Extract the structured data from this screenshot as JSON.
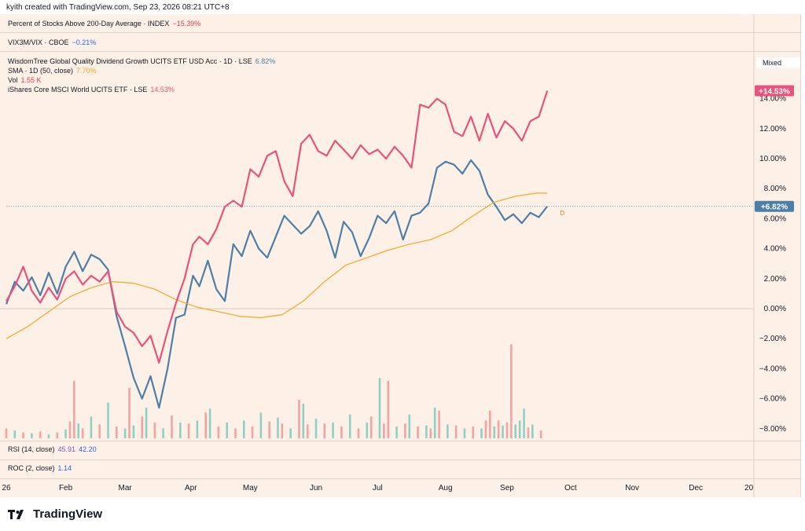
{
  "header": {
    "text": "kyith created with TradingView.com, Sep 23, 2026 08:21 UTC+8"
  },
  "panes": {
    "breadth": {
      "name": "Percent of Stocks Above 200-Day Average · INDEX",
      "value": "−15.39%",
      "color": "#f23645"
    },
    "vix": {
      "name": "VIX3M/VIX · CBOE",
      "value": "−0.21%",
      "color": "#2962ff"
    },
    "rsi": {
      "name": "RSI (14, close)",
      "value1": "45.91",
      "value2": "42.20",
      "color1": "#7e57c2",
      "color2": "#2962ff"
    },
    "roc": {
      "name": "ROC (2, close)",
      "value": "1.14",
      "color": "#2962ff"
    }
  },
  "main_legend": [
    {
      "name": "WisdomTree Global Quality Dividend Growth UCITS ETF USD Acc · 1D · LSE",
      "value": "6.82%",
      "color": "#4d7ea8"
    },
    {
      "name": "SMA · 1D (50, close)",
      "value": "7.70%",
      "color": "#f5a623"
    },
    {
      "name": "Vol",
      "value": "1.55 K",
      "color": "#f23645"
    },
    {
      "name": "iShares Core MSCI World UCITS ETF · LSE",
      "value": "14.53%",
      "color": "#e8527d"
    }
  ],
  "scale_mode": "Mixed",
  "footer": {
    "brand": "TradingView"
  },
  "chart_data": {
    "type": "line",
    "y_unit": "%",
    "ylim": [
      -9,
      15.5
    ],
    "y_ticks": [
      "14.00%",
      "12.00%",
      "10.00%",
      "8.00%",
      "6.00%",
      "4.00%",
      "2.00%",
      "0.00%",
      "−2.00%",
      "−4.00%",
      "−6.00%",
      "−8.00%"
    ],
    "y_tick_values": [
      14,
      12,
      10,
      8,
      6,
      4,
      2,
      0,
      -2,
      -4,
      -6,
      -8
    ],
    "x_labels": [
      "26",
      "Feb",
      "Mar",
      "Apr",
      "May",
      "Jun",
      "Jul",
      "Aug",
      "Sep",
      "Oct",
      "Nov",
      "Dec",
      "20"
    ],
    "x_label_days": [
      0,
      28,
      56,
      87,
      115,
      146,
      175,
      207,
      236,
      266,
      295,
      325,
      350
    ],
    "x_range_days": [
      0,
      352
    ],
    "series": [
      {
        "name": "WisdomTree Global Quality Dividend Growth UCITS ETF USD Acc",
        "color": "#4d7ea8",
        "x": [
          0,
          4,
          8,
          12,
          16,
          20,
          24,
          28,
          32,
          36,
          40,
          44,
          48,
          52,
          56,
          60,
          64,
          68,
          72,
          76,
          80,
          84,
          88,
          91,
          95,
          99,
          103,
          107,
          111,
          115,
          119,
          123,
          127,
          131,
          135,
          139,
          143,
          147,
          151,
          155,
          159,
          163,
          167,
          171,
          175,
          179,
          183,
          187,
          191,
          195,
          199,
          203,
          207,
          211,
          215,
          219,
          223,
          227,
          231,
          235,
          239,
          243,
          247,
          251,
          255
        ],
        "values": [
          0.3,
          1.8,
          1.2,
          2.1,
          0.9,
          2.4,
          1.0,
          2.8,
          3.8,
          2.5,
          3.6,
          3.3,
          2.6,
          -0.5,
          -2.5,
          -4.6,
          -6.0,
          -4.5,
          -6.6,
          -4.0,
          -0.6,
          -0.4,
          2.2,
          1.5,
          3.2,
          1.3,
          0.5,
          4.3,
          3.5,
          5.2,
          4.0,
          3.4,
          4.8,
          6.2,
          5.6,
          5.0,
          5.5,
          6.5,
          5.2,
          3.4,
          5.8,
          5.1,
          3.5,
          4.7,
          6.2,
          5.7,
          6.5,
          4.6,
          6.2,
          6.4,
          7.0,
          9.4,
          9.8,
          9.6,
          9.0,
          9.9,
          9.2,
          7.6,
          6.8,
          5.9,
          6.3,
          5.7,
          6.4,
          6.1,
          6.82
        ]
      },
      {
        "name": "SMA · 1D (50, close)",
        "color": "#f5a623",
        "x": [
          0,
          10,
          20,
          30,
          40,
          50,
          60,
          70,
          80,
          90,
          100,
          110,
          120,
          130,
          140,
          150,
          160,
          170,
          180,
          190,
          200,
          210,
          220,
          230,
          240,
          250,
          255
        ],
        "values": [
          -2.0,
          -1.2,
          -0.2,
          0.8,
          1.4,
          1.8,
          1.7,
          1.3,
          0.6,
          0.1,
          -0.2,
          -0.5,
          -0.6,
          -0.4,
          0.5,
          1.8,
          2.9,
          3.4,
          3.9,
          4.3,
          4.6,
          5.2,
          6.2,
          7.1,
          7.5,
          7.7,
          7.7
        ]
      },
      {
        "name": "iShares Core MSCI World UCITS ETF",
        "color": "#e8527d",
        "x": [
          0,
          4,
          8,
          12,
          16,
          20,
          24,
          28,
          32,
          36,
          40,
          44,
          48,
          52,
          56,
          60,
          64,
          68,
          72,
          76,
          80,
          84,
          88,
          91,
          95,
          99,
          103,
          107,
          111,
          115,
          119,
          123,
          127,
          131,
          135,
          139,
          143,
          147,
          151,
          155,
          159,
          163,
          167,
          171,
          175,
          179,
          183,
          187,
          191,
          195,
          199,
          203,
          207,
          211,
          215,
          219,
          223,
          227,
          231,
          235,
          239,
          243,
          247,
          251,
          255
        ],
        "values": [
          0.5,
          1.5,
          2.8,
          1.2,
          0.4,
          1.4,
          0.6,
          2.0,
          2.5,
          1.6,
          2.2,
          1.8,
          2.5,
          -0.2,
          -1.2,
          -1.6,
          -2.5,
          -1.8,
          -3.6,
          -1.5,
          0.4,
          2.0,
          4.3,
          4.8,
          4.3,
          5.3,
          6.8,
          7.2,
          6.8,
          9.3,
          8.8,
          10.2,
          10.5,
          8.5,
          7.5,
          11.0,
          11.6,
          10.5,
          10.2,
          11.2,
          10.6,
          10.0,
          10.9,
          10.3,
          10.6,
          10.0,
          10.8,
          10.2,
          9.4,
          13.6,
          13.4,
          14.0,
          13.6,
          11.8,
          11.5,
          12.8,
          11.2,
          13.0,
          11.4,
          12.5,
          12.0,
          11.2,
          12.5,
          12.8,
          14.53
        ]
      }
    ],
    "volume": {
      "label": "Vol",
      "bars": [
        [
          0,
          1.0,
          "red"
        ],
        [
          4,
          0.8,
          "green"
        ],
        [
          8,
          0.6,
          "red"
        ],
        [
          12,
          0.5,
          "green"
        ],
        [
          16,
          0.7,
          "red"
        ],
        [
          20,
          0.4,
          "green"
        ],
        [
          24,
          0.6,
          "red"
        ],
        [
          28,
          0.9,
          "green"
        ],
        [
          30,
          1.7,
          "red"
        ],
        [
          32,
          5.8,
          "red"
        ],
        [
          34,
          1.5,
          "green"
        ],
        [
          36,
          1.0,
          "red"
        ],
        [
          40,
          2.2,
          "green"
        ],
        [
          44,
          1.4,
          "red"
        ],
        [
          48,
          3.6,
          "green"
        ],
        [
          52,
          1.2,
          "red"
        ],
        [
          56,
          1.0,
          "green"
        ],
        [
          58,
          5.1,
          "red"
        ],
        [
          60,
          1.3,
          "green"
        ],
        [
          64,
          2.2,
          "red"
        ],
        [
          66,
          3.1,
          "green"
        ],
        [
          70,
          1.6,
          "red"
        ],
        [
          74,
          1.0,
          "green"
        ],
        [
          78,
          2.3,
          "red"
        ],
        [
          82,
          1.6,
          "green"
        ],
        [
          86,
          1.5,
          "red"
        ],
        [
          90,
          1.8,
          "green"
        ],
        [
          94,
          2.6,
          "red"
        ],
        [
          96,
          3.0,
          "green"
        ],
        [
          100,
          1.2,
          "red"
        ],
        [
          104,
          1.6,
          "green"
        ],
        [
          108,
          1.0,
          "red"
        ],
        [
          112,
          1.8,
          "green"
        ],
        [
          116,
          1.2,
          "red"
        ],
        [
          120,
          2.6,
          "green"
        ],
        [
          124,
          1.7,
          "red"
        ],
        [
          128,
          2.1,
          "green"
        ],
        [
          130,
          1.5,
          "red"
        ],
        [
          134,
          1.0,
          "green"
        ],
        [
          138,
          3.9,
          "red"
        ],
        [
          140,
          3.5,
          "green"
        ],
        [
          142,
          1.4,
          "red"
        ],
        [
          146,
          2.0,
          "green"
        ],
        [
          150,
          1.5,
          "red"
        ],
        [
          154,
          1.6,
          "green"
        ],
        [
          158,
          1.2,
          "red"
        ],
        [
          162,
          2.4,
          "green"
        ],
        [
          166,
          1.0,
          "red"
        ],
        [
          170,
          1.6,
          "green"
        ],
        [
          172,
          2.2,
          "red"
        ],
        [
          176,
          6.1,
          "green"
        ],
        [
          178,
          1.5,
          "red"
        ],
        [
          180,
          5.8,
          "red"
        ],
        [
          184,
          1.2,
          "green"
        ],
        [
          188,
          1.5,
          "red"
        ],
        [
          190,
          2.4,
          "green"
        ],
        [
          194,
          1.2,
          "red"
        ],
        [
          198,
          1.3,
          "green"
        ],
        [
          200,
          1.0,
          "red"
        ],
        [
          202,
          3.1,
          "green"
        ],
        [
          204,
          2.8,
          "red"
        ],
        [
          208,
          1.4,
          "green"
        ],
        [
          212,
          1.3,
          "red"
        ],
        [
          216,
          1.0,
          "green"
        ],
        [
          220,
          1.2,
          "red"
        ],
        [
          224,
          1.0,
          "green"
        ],
        [
          226,
          1.8,
          "red"
        ],
        [
          228,
          2.8,
          "red"
        ],
        [
          230,
          1.2,
          "green"
        ],
        [
          232,
          1.8,
          "red"
        ],
        [
          234,
          1.3,
          "green"
        ],
        [
          236,
          1.6,
          "red"
        ],
        [
          238,
          9.5,
          "red"
        ],
        [
          240,
          1.4,
          "green"
        ],
        [
          242,
          1.8,
          "green"
        ],
        [
          244,
          3.0,
          "green"
        ],
        [
          246,
          1.1,
          "red"
        ],
        [
          248,
          1.4,
          "green"
        ],
        [
          252,
          0.8,
          "red"
        ]
      ]
    },
    "last_value_tags": [
      {
        "series": "iShares Core MSCI World UCITS ETF",
        "value": 14.53,
        "label": "+14.53%",
        "color": "#e8527d"
      },
      {
        "series": "WisdomTree Global Quality Dividend Growth UCITS ETF USD Acc",
        "value": 6.82,
        "label": "+6.82%",
        "color": "#4d7ea8"
      }
    ],
    "dividend_marker": {
      "label": "D",
      "x": 262,
      "value": 6.4
    }
  }
}
